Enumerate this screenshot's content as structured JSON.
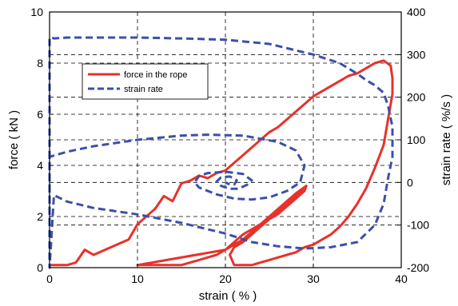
{
  "chart_data": {
    "type": "line",
    "xlabel": "strain ( % )",
    "ylabel_left": "force ( kN )",
    "ylabel_right": "strain rate ( %/s )",
    "xlim": [
      0,
      40
    ],
    "ylim_left": [
      0,
      10
    ],
    "ylim_right": [
      -200,
      400
    ],
    "x_ticks": [
      "0",
      "10",
      "20",
      "30",
      "40"
    ],
    "y_left_ticks": [
      "0",
      "2",
      "4",
      "6",
      "8",
      "10"
    ],
    "y_right_ticks": [
      "-200",
      "-100",
      "0",
      "100",
      "200",
      "300",
      "400"
    ],
    "grid": true,
    "legend_position": "upper-left",
    "series": [
      {
        "name": "force in the rope",
        "axis": "left",
        "color": "#e8312a",
        "style": "solid",
        "x": [
          0,
          2,
          3,
          4,
          5,
          7,
          9,
          10,
          12,
          13,
          14,
          15,
          16,
          17,
          18,
          19,
          20,
          21,
          22,
          23,
          24,
          25,
          26,
          27,
          28,
          29,
          30,
          31,
          32,
          33,
          34,
          35,
          36,
          37,
          38,
          38.8,
          39,
          39,
          38.5,
          38,
          37,
          36,
          35,
          34,
          33,
          32,
          31,
          30,
          29,
          28,
          27,
          26,
          25,
          24,
          23,
          22,
          21,
          20.5,
          21,
          22,
          23,
          24,
          25,
          26,
          27,
          28,
          28.8,
          29,
          28,
          27,
          26,
          25,
          24,
          23,
          22,
          21,
          20,
          19,
          18,
          17,
          16,
          15,
          14,
          13,
          12,
          11,
          10,
          20,
          21,
          22,
          23,
          24,
          25,
          26,
          27,
          28,
          29,
          29.2,
          28,
          27,
          26,
          25,
          24,
          23,
          22,
          21,
          20,
          19,
          18,
          17,
          16,
          15,
          14,
          13,
          12,
          11,
          10
        ],
        "y": [
          0.1,
          0.1,
          0.2,
          0.7,
          0.5,
          0.8,
          1.1,
          1.7,
          2.3,
          2.8,
          2.6,
          3.3,
          3.4,
          3.6,
          3.5,
          3.7,
          3.8,
          4.1,
          4.4,
          4.7,
          5.0,
          5.3,
          5.5,
          5.8,
          6.1,
          6.4,
          6.7,
          6.9,
          7.1,
          7.3,
          7.5,
          7.6,
          7.8,
          8.0,
          8.1,
          7.9,
          7.4,
          6.8,
          5.8,
          4.8,
          3.9,
          3.1,
          2.5,
          2.0,
          1.6,
          1.3,
          1.1,
          0.9,
          0.8,
          0.6,
          0.5,
          0.4,
          0.3,
          0.2,
          0.1,
          0.1,
          0.1,
          0.5,
          0.8,
          1.0,
          1.3,
          1.6,
          1.9,
          2.2,
          2.5,
          2.7,
          3.0,
          3.1,
          2.8,
          2.5,
          2.2,
          1.9,
          1.6,
          1.3,
          1.1,
          0.9,
          0.7,
          0.5,
          0.4,
          0.3,
          0.2,
          0.1,
          0.1,
          0.1,
          0.1,
          0.1,
          0.1,
          0.7,
          1.0,
          1.3,
          1.5,
          1.7,
          1.9,
          2.1,
          2.4,
          2.7,
          3.0,
          3.2,
          2.9,
          2.6,
          2.3,
          2.0,
          1.7,
          1.4,
          1.1,
          0.9,
          0.7,
          0.5,
          0.4,
          0.3,
          0.2,
          0.1,
          0.1,
          0.1,
          0.1,
          0.1,
          0.1
        ]
      },
      {
        "name": "strain rate",
        "axis": "right",
        "color": "#3a50a8",
        "style": "dashed",
        "x": [
          0,
          0,
          0.2,
          0.5,
          2,
          5,
          10,
          15,
          20,
          25,
          30,
          33,
          35,
          36,
          37,
          38,
          38.5,
          39,
          39,
          38.5,
          38,
          37,
          35,
          32,
          29,
          26,
          23,
          20,
          15,
          10,
          5,
          2,
          0.5,
          0,
          0,
          2,
          5,
          10,
          15,
          18,
          22,
          26,
          28,
          29,
          28.5,
          27,
          25,
          23,
          21,
          19,
          17,
          16.5,
          17,
          18,
          20,
          22,
          23,
          22.5,
          21.5,
          20.5,
          19.5,
          19,
          19.5,
          20.5,
          21.3,
          21,
          20.5,
          20
        ],
        "y": [
          -100,
          340,
          340,
          338,
          340,
          340,
          340,
          338,
          335,
          325,
          300,
          280,
          255,
          240,
          228,
          210,
          180,
          130,
          60,
          10,
          -50,
          -100,
          -140,
          -152,
          -155,
          -150,
          -140,
          -120,
          -95,
          -75,
          -60,
          -45,
          -30,
          -200,
          60,
          72,
          85,
          100,
          110,
          112,
          110,
          95,
          75,
          40,
          0,
          -20,
          -35,
          -40,
          -38,
          -28,
          -12,
          0,
          15,
          22,
          25,
          20,
          5,
          -5,
          -15,
          -15,
          -8,
          2,
          12,
          14,
          5,
          -5,
          -5,
          0
        ]
      }
    ]
  }
}
